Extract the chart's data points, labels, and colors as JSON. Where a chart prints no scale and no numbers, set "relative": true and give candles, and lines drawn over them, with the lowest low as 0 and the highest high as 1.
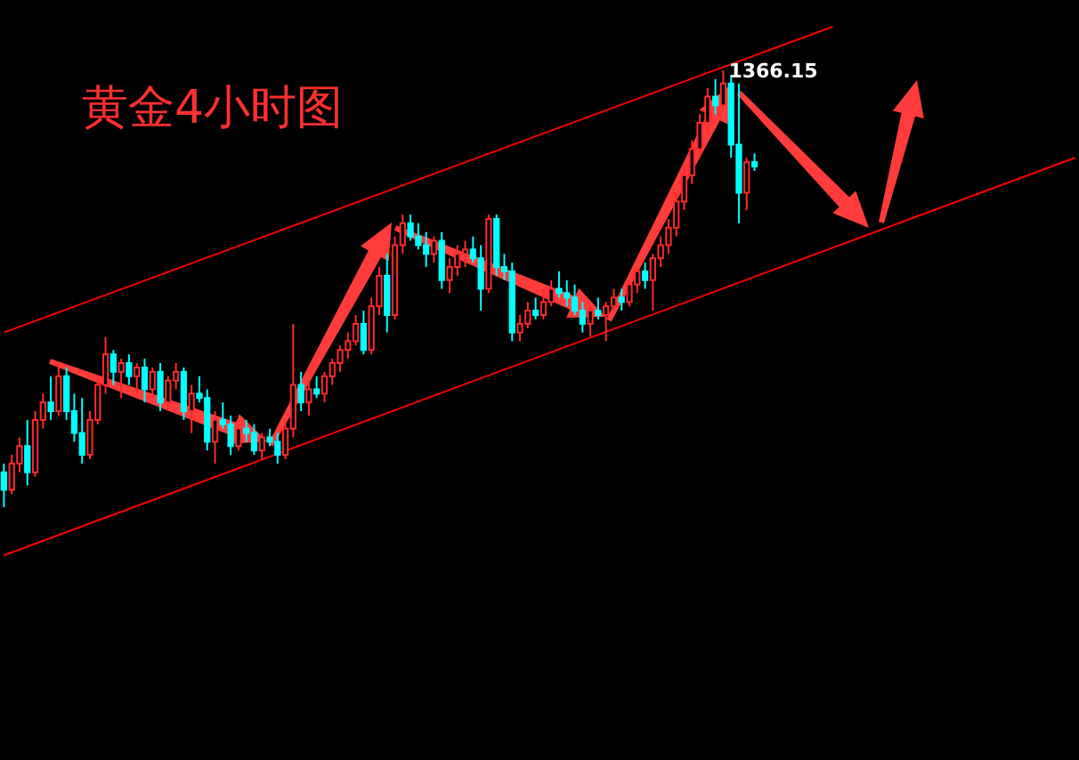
{
  "chart_data": {
    "type": "candlestick",
    "title": "黄金4小时图",
    "relative": true,
    "categories": [
      null,
      null,
      null,
      null,
      null,
      null,
      null,
      null,
      null,
      null,
      null,
      null,
      null,
      null,
      null,
      null,
      null,
      null,
      null,
      null,
      null,
      null,
      null,
      null,
      null,
      null,
      null,
      null,
      null,
      null,
      null,
      null,
      null,
      null,
      null,
      null,
      null,
      null,
      null,
      null,
      null,
      null,
      null,
      null,
      null,
      null,
      null,
      null,
      null,
      null,
      null,
      null,
      null,
      null,
      null,
      null,
      null,
      null,
      null,
      null,
      null,
      null,
      null,
      null,
      null,
      null,
      null,
      null,
      null,
      null,
      null,
      null,
      null,
      null,
      null,
      null,
      null,
      null,
      null,
      null,
      null,
      null,
      null,
      null,
      null,
      null,
      null,
      null,
      null,
      null,
      null,
      null,
      null,
      null,
      null,
      null,
      null,
      null,
      null,
      null,
      null,
      null,
      null,
      null,
      null,
      null,
      null,
      null,
      null,
      null,
      null,
      null,
      null,
      null,
      null,
      null,
      null,
      null,
      null,
      null,
      null,
      null,
      null,
      null,
      null,
      null,
      null,
      null,
      null,
      null,
      null,
      null,
      null,
      null,
      null,
      null,
      null,
      null
    ],
    "ohlc": [
      [
        0.08,
        0.1,
        0.0,
        0.04
      ],
      [
        0.04,
        0.12,
        0.03,
        0.1
      ],
      [
        0.1,
        0.16,
        0.08,
        0.14
      ],
      [
        0.14,
        0.2,
        0.05,
        0.08
      ],
      [
        0.08,
        0.22,
        0.07,
        0.2
      ],
      [
        0.2,
        0.26,
        0.18,
        0.24
      ],
      [
        0.24,
        0.3,
        0.2,
        0.22
      ],
      [
        0.22,
        0.33,
        0.21,
        0.3
      ],
      [
        0.3,
        0.32,
        0.2,
        0.22
      ],
      [
        0.22,
        0.26,
        0.15,
        0.17
      ],
      [
        0.17,
        0.25,
        0.1,
        0.12
      ],
      [
        0.12,
        0.22,
        0.11,
        0.2
      ],
      [
        0.2,
        0.3,
        0.19,
        0.28
      ],
      [
        0.28,
        0.39,
        0.26,
        0.35
      ],
      [
        0.35,
        0.36,
        0.28,
        0.31
      ],
      [
        0.31,
        0.34,
        0.25,
        0.33
      ],
      [
        0.33,
        0.35,
        0.28,
        0.3
      ],
      [
        0.3,
        0.33,
        0.26,
        0.32
      ],
      [
        0.32,
        0.34,
        0.24,
        0.27
      ],
      [
        0.27,
        0.32,
        0.25,
        0.31
      ],
      [
        0.31,
        0.33,
        0.22,
        0.24
      ],
      [
        0.24,
        0.3,
        0.22,
        0.29
      ],
      [
        0.29,
        0.33,
        0.27,
        0.31
      ],
      [
        0.31,
        0.32,
        0.2,
        0.22
      ],
      [
        0.22,
        0.28,
        0.17,
        0.26
      ],
      [
        0.26,
        0.3,
        0.24,
        0.25
      ],
      [
        0.25,
        0.27,
        0.13,
        0.15
      ],
      [
        0.15,
        0.22,
        0.1,
        0.2
      ],
      [
        0.2,
        0.24,
        0.18,
        0.19
      ],
      [
        0.19,
        0.21,
        0.12,
        0.14
      ],
      [
        0.14,
        0.19,
        0.13,
        0.18
      ],
      [
        0.18,
        0.2,
        0.15,
        0.17
      ],
      [
        0.17,
        0.19,
        0.12,
        0.13
      ],
      [
        0.13,
        0.17,
        0.11,
        0.16
      ],
      [
        0.16,
        0.18,
        0.14,
        0.15
      ],
      [
        0.15,
        0.17,
        0.1,
        0.12
      ],
      [
        0.12,
        0.2,
        0.11,
        0.18
      ],
      [
        0.18,
        0.42,
        0.16,
        0.28
      ],
      [
        0.28,
        0.31,
        0.22,
        0.24
      ],
      [
        0.24,
        0.29,
        0.21,
        0.27
      ],
      [
        0.27,
        0.3,
        0.25,
        0.26
      ],
      [
        0.26,
        0.31,
        0.24,
        0.3
      ],
      [
        0.3,
        0.34,
        0.28,
        0.33
      ],
      [
        0.33,
        0.37,
        0.31,
        0.36
      ],
      [
        0.36,
        0.4,
        0.34,
        0.38
      ],
      [
        0.38,
        0.44,
        0.37,
        0.42
      ],
      [
        0.42,
        0.45,
        0.35,
        0.36
      ],
      [
        0.36,
        0.48,
        0.35,
        0.46
      ],
      [
        0.46,
        0.55,
        0.44,
        0.53
      ],
      [
        0.53,
        0.58,
        0.4,
        0.44
      ],
      [
        0.44,
        0.62,
        0.43,
        0.6
      ],
      [
        0.6,
        0.67,
        0.58,
        0.65
      ],
      [
        0.65,
        0.67,
        0.61,
        0.62
      ],
      [
        0.62,
        0.65,
        0.59,
        0.6
      ],
      [
        0.6,
        0.63,
        0.55,
        0.58
      ],
      [
        0.58,
        0.62,
        0.56,
        0.61
      ],
      [
        0.61,
        0.63,
        0.5,
        0.52
      ],
      [
        0.52,
        0.57,
        0.49,
        0.55
      ],
      [
        0.55,
        0.6,
        0.53,
        0.58
      ],
      [
        0.58,
        0.61,
        0.55,
        0.59
      ],
      [
        0.59,
        0.62,
        0.56,
        0.57
      ],
      [
        0.57,
        0.6,
        0.45,
        0.5
      ],
      [
        0.5,
        0.67,
        0.49,
        0.66
      ],
      [
        0.66,
        0.67,
        0.53,
        0.55
      ],
      [
        0.55,
        0.58,
        0.52,
        0.54
      ],
      [
        0.54,
        0.56,
        0.38,
        0.4
      ],
      [
        0.4,
        0.44,
        0.38,
        0.42
      ],
      [
        0.42,
        0.47,
        0.41,
        0.45
      ],
      [
        0.45,
        0.48,
        0.43,
        0.44
      ],
      [
        0.44,
        0.5,
        0.43,
        0.47
      ],
      [
        0.47,
        0.52,
        0.46,
        0.5
      ],
      [
        0.5,
        0.54,
        0.48,
        0.49
      ],
      [
        0.49,
        0.52,
        0.46,
        0.48
      ],
      [
        0.48,
        0.51,
        0.44,
        0.45
      ],
      [
        0.45,
        0.47,
        0.4,
        0.42
      ],
      [
        0.42,
        0.46,
        0.39,
        0.45
      ],
      [
        0.45,
        0.48,
        0.43,
        0.44
      ],
      [
        0.44,
        0.47,
        0.38,
        0.46
      ],
      [
        0.46,
        0.5,
        0.45,
        0.48
      ],
      [
        0.48,
        0.5,
        0.45,
        0.47
      ],
      [
        0.47,
        0.52,
        0.46,
        0.51
      ],
      [
        0.51,
        0.55,
        0.49,
        0.54
      ],
      [
        0.54,
        0.56,
        0.5,
        0.52
      ],
      [
        0.52,
        0.58,
        0.45,
        0.57
      ],
      [
        0.57,
        0.62,
        0.55,
        0.6
      ],
      [
        0.6,
        0.66,
        0.58,
        0.64
      ],
      [
        0.64,
        0.72,
        0.62,
        0.7
      ],
      [
        0.7,
        0.78,
        0.68,
        0.76
      ],
      [
        0.76,
        0.84,
        0.74,
        0.82
      ],
      [
        0.82,
        0.9,
        0.8,
        0.88
      ],
      [
        0.88,
        0.96,
        0.86,
        0.94
      ],
      [
        0.94,
        0.98,
        0.9,
        0.92
      ],
      [
        0.92,
        1.0,
        0.91,
        0.97
      ],
      [
        0.97,
        0.99,
        0.8,
        0.83
      ],
      [
        0.83,
        0.97,
        0.65,
        0.72
      ],
      [
        0.72,
        0.8,
        0.68,
        0.79
      ],
      [
        0.79,
        0.81,
        0.77,
        0.78
      ],
      null,
      null,
      null,
      null,
      null,
      null,
      null,
      null,
      null,
      null,
      null,
      null,
      null,
      null,
      null,
      null,
      null,
      null,
      null,
      null,
      null,
      null,
      null,
      null,
      null,
      null,
      null,
      null,
      null,
      null,
      null,
      null,
      null,
      null,
      null,
      null,
      null,
      null,
      null,
      null,
      null
    ],
    "series": [
      {
        "type": "line",
        "color": "#ff0000",
        "values": [
          0.4,
          null,
          null,
          null,
          null,
          null,
          null,
          null,
          null,
          null,
          null,
          null,
          null,
          null,
          null,
          null,
          null,
          null,
          null,
          null,
          null,
          null,
          null,
          null,
          null,
          null,
          null,
          null,
          null,
          null,
          null,
          null,
          null,
          null,
          null,
          null,
          null,
          null,
          null,
          null,
          null,
          null,
          null,
          null,
          null,
          null,
          null,
          null,
          null,
          null,
          null,
          null,
          null,
          null,
          null,
          null,
          null,
          null,
          null,
          null,
          null,
          null,
          null,
          null,
          null,
          null,
          null,
          null,
          null,
          null,
          null,
          null,
          null,
          null,
          null,
          null,
          null,
          null,
          null,
          null,
          null,
          null,
          null,
          null,
          null,
          null,
          null,
          null,
          null,
          null,
          null,
          null,
          null,
          null,
          null,
          null,
          null,
          null,
          null,
          null,
          null,
          null,
          null,
          null,
          null,
          null,
          1.1,
          null,
          null,
          null,
          null,
          null,
          null,
          null,
          null,
          null,
          null,
          null,
          null,
          null,
          null,
          null,
          null,
          null,
          null,
          null,
          null,
          null,
          null,
          null,
          null,
          null,
          null,
          null,
          null,
          null,
          null,
          null
        ]
      },
      {
        "type": "line",
        "color": "#ff0000",
        "values": [
          -0.11,
          null,
          null,
          null,
          null,
          null,
          null,
          null,
          null,
          null,
          null,
          null,
          null,
          null,
          null,
          null,
          null,
          null,
          null,
          null,
          null,
          null,
          null,
          null,
          null,
          null,
          null,
          null,
          null,
          null,
          null,
          null,
          null,
          null,
          null,
          null,
          null,
          null,
          null,
          null,
          null,
          null,
          null,
          null,
          null,
          null,
          null,
          null,
          null,
          null,
          null,
          null,
          null,
          null,
          null,
          null,
          null,
          null,
          null,
          null,
          null,
          null,
          null,
          null,
          null,
          null,
          null,
          null,
          null,
          null,
          null,
          null,
          null,
          null,
          null,
          null,
          null,
          null,
          null,
          null,
          null,
          null,
          null,
          null,
          null,
          null,
          null,
          null,
          null,
          null,
          null,
          null,
          null,
          null,
          null,
          null,
          null,
          null,
          null,
          null,
          null,
          null,
          null,
          null,
          null,
          null,
          null,
          null,
          null,
          null,
          null,
          null,
          null,
          null,
          null,
          null,
          null,
          null,
          null,
          null,
          null,
          null,
          null,
          null,
          null,
          null,
          null,
          null,
          null,
          null,
          null,
          null,
          null,
          null,
          null,
          null,
          null,
          0.8
        ]
      }
    ],
    "annotations": [
      "1366.15"
    ]
  }
}
